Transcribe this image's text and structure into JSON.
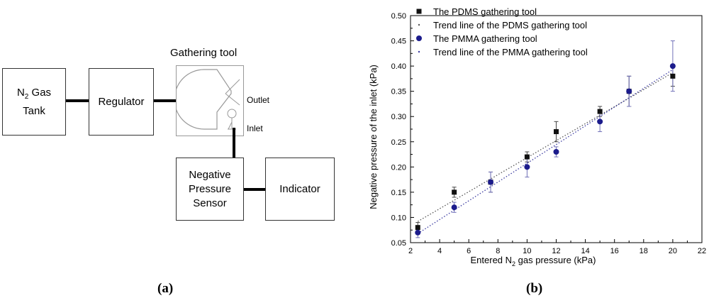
{
  "diagram": {
    "tank_line1_main": "N",
    "tank_line1_sub": "2",
    "tank_line1_rest": " Gas",
    "tank_line2": "Tank",
    "regulator": "Regulator",
    "gathering_tool_title": "Gathering tool",
    "outlet": "Outlet",
    "inlet": "Inlet",
    "sensor_line1": "Negative",
    "sensor_line2": "Pressure",
    "sensor_line3": "Sensor",
    "indicator": "Indicator"
  },
  "panel_labels": {
    "a": "(a)",
    "b": "(b)"
  },
  "chart_data": {
    "type": "scatter",
    "xlabel_main": "Entered N",
    "xlabel_sub": "2",
    "xlabel_rest": " gas pressure (kPa)",
    "ylabel": "Negative pressure of the inlet (kPa)",
    "xlim": [
      2,
      22
    ],
    "ylim": [
      0.05,
      0.5
    ],
    "xticks": [
      "2",
      "4",
      "6",
      "8",
      "10",
      "12",
      "14",
      "16",
      "18",
      "20",
      "22"
    ],
    "yticks": [
      "0.05",
      "0.10",
      "0.15",
      "0.20",
      "0.25",
      "0.30",
      "0.35",
      "0.40",
      "0.45",
      "0.50"
    ],
    "legend_position": "top-left",
    "grid": false,
    "series": [
      {
        "name": "The PDMS gathering tool",
        "marker": "square",
        "color": "#111111",
        "x": [
          2.5,
          5,
          7.5,
          10,
          12,
          15,
          17,
          20
        ],
        "y": [
          0.08,
          0.15,
          0.17,
          0.22,
          0.27,
          0.31,
          0.35,
          0.38
        ],
        "err": [
          0.01,
          0.01,
          0.02,
          0.01,
          0.02,
          0.01,
          0.03,
          0.02
        ]
      },
      {
        "name": "Trend line of the PDMS gathering tool",
        "style": "dotted",
        "color": "#555555",
        "x": [
          2.5,
          20
        ],
        "y": [
          0.092,
          0.387
        ]
      },
      {
        "name": "The PMMA gathering tool",
        "marker": "circle",
        "color": "#1c1c8c",
        "x": [
          2.5,
          5,
          7.5,
          10,
          12,
          15,
          17,
          20
        ],
        "y": [
          0.07,
          0.12,
          0.17,
          0.2,
          0.23,
          0.29,
          0.35,
          0.4
        ],
        "err": [
          0.01,
          0.01,
          0.02,
          0.02,
          0.01,
          0.02,
          0.03,
          0.05
        ]
      },
      {
        "name": "Trend line of the PMMA gathering tool",
        "style": "dotted",
        "color": "#3a3aa0",
        "x": [
          2.5,
          20
        ],
        "y": [
          0.068,
          0.393
        ]
      }
    ]
  }
}
